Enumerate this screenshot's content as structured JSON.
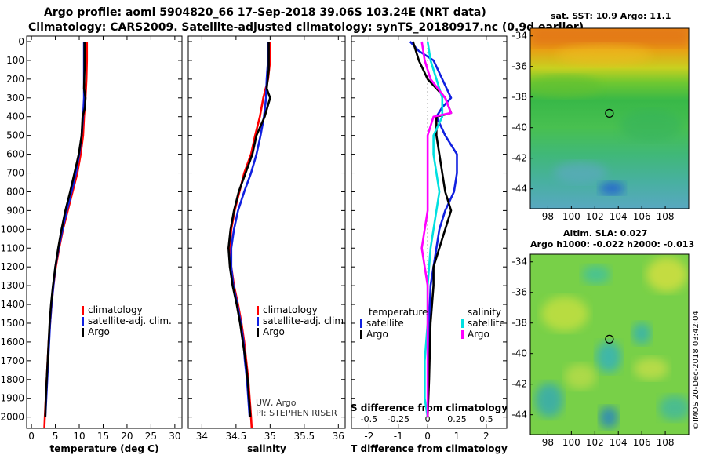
{
  "header": {
    "title_line1": "Argo profile: aoml 5904820_66 17-Sep-2018 39.06S 103.24E (NRT data)",
    "title_line2": "Climatology: CARS2009. Satellite-adjusted climatology: synTS_20180917.nc (0.9d earlier)"
  },
  "sst_title": "sat. SST: 10.9 Argo: 11.1",
  "sla_title1": "Altim. SLA: 0.027",
  "sla_title2": "Argo h1000: -0.022 h2000: -0.013",
  "credit_text": "UW, Argo",
  "pi_text": "PI: STEPHEN RISER",
  "footer_stamp": "©IMOS 20-Dec-2018 03:42:04",
  "colors": {
    "climatology": "#ff0000",
    "satellite": "#1020e0",
    "argo": "#000000",
    "satellite_s": "#00e0e0",
    "argo_s": "#ff00ff"
  },
  "chart_data": [
    {
      "type": "line",
      "name": "temperature-profile",
      "xlabel": "temperature (deg C)",
      "ylabel": "depth",
      "xlim": [
        -1,
        31.5
      ],
      "ylim": [
        2060,
        0
      ],
      "xticks": [
        0,
        5,
        10,
        15,
        20,
        25,
        30
      ],
      "yticks": [
        0,
        100,
        200,
        300,
        400,
        500,
        600,
        700,
        800,
        900,
        1000,
        1100,
        1200,
        1300,
        1400,
        1500,
        1600,
        1700,
        1800,
        1900,
        2000
      ],
      "legend": [
        "climatology",
        "satellite-adj. clim.",
        "Argo"
      ],
      "series": [
        {
          "name": "climatology",
          "color": "#ff0000",
          "points": [
            [
              11.6,
              0
            ],
            [
              11.6,
              100
            ],
            [
              11.5,
              200
            ],
            [
              11.3,
              300
            ],
            [
              11.0,
              400
            ],
            [
              10.8,
              500
            ],
            [
              10.3,
              600
            ],
            [
              9.6,
              700
            ],
            [
              8.6,
              800
            ],
            [
              7.6,
              900
            ],
            [
              6.6,
              1000
            ],
            [
              5.8,
              1100
            ],
            [
              5.1,
              1200
            ],
            [
              4.6,
              1300
            ],
            [
              4.2,
              1400
            ],
            [
              3.9,
              1500
            ],
            [
              3.6,
              1600
            ],
            [
              3.4,
              1700
            ],
            [
              3.2,
              1800
            ],
            [
              3.0,
              1900
            ],
            [
              2.8,
              2000
            ],
            [
              2.7,
              2060
            ]
          ]
        },
        {
          "name": "satellite-adj. clim.",
          "color": "#1020e0",
          "points": [
            [
              11.0,
              0
            ],
            [
              11.0,
              100
            ],
            [
              11.0,
              200
            ],
            [
              11.0,
              300
            ],
            [
              10.8,
              400
            ],
            [
              10.5,
              500
            ],
            [
              10.0,
              600
            ],
            [
              9.3,
              700
            ],
            [
              8.4,
              800
            ],
            [
              7.4,
              900
            ],
            [
              6.5,
              1000
            ],
            [
              5.7,
              1100
            ],
            [
              5.0,
              1200
            ],
            [
              4.6,
              1300
            ],
            [
              4.2,
              1400
            ],
            [
              3.9,
              1500
            ],
            [
              3.7,
              1600
            ],
            [
              3.5,
              1700
            ],
            [
              3.3,
              1800
            ],
            [
              3.1,
              1900
            ],
            [
              2.9,
              2000
            ]
          ]
        },
        {
          "name": "Argo",
          "color": "#000000",
          "points": [
            [
              11.1,
              0
            ],
            [
              11.1,
              150
            ],
            [
              11.0,
              250
            ],
            [
              11.3,
              300
            ],
            [
              11.2,
              350
            ],
            [
              10.7,
              400
            ],
            [
              10.5,
              500
            ],
            [
              9.9,
              600
            ],
            [
              9.0,
              700
            ],
            [
              8.1,
              800
            ],
            [
              7.1,
              900
            ],
            [
              6.3,
              1000
            ],
            [
              5.6,
              1100
            ],
            [
              5.0,
              1200
            ],
            [
              4.5,
              1300
            ],
            [
              4.1,
              1400
            ],
            [
              3.8,
              1500
            ],
            [
              3.6,
              1600
            ],
            [
              3.4,
              1700
            ],
            [
              3.2,
              1800
            ],
            [
              3.0,
              1900
            ],
            [
              2.9,
              2000
            ]
          ]
        }
      ]
    },
    {
      "type": "line",
      "name": "salinity-profile",
      "xlabel": "salinity",
      "ylabel": "depth",
      "xlim": [
        33.8,
        36.1
      ],
      "ylim": [
        2060,
        0
      ],
      "xticks": [
        34,
        34.5,
        35,
        35.5,
        36
      ],
      "xticklabels": [
        "34",
        "34.5",
        "35",
        "35.5",
        "36"
      ],
      "legend": [
        "climatology",
        "satellite-adj. clim.",
        "Argo"
      ],
      "series": [
        {
          "name": "climatology",
          "color": "#ff0000",
          "points": [
            [
              35.0,
              0
            ],
            [
              35.0,
              100
            ],
            [
              34.97,
              200
            ],
            [
              34.9,
              300
            ],
            [
              34.85,
              400
            ],
            [
              34.78,
              500
            ],
            [
              34.72,
              600
            ],
            [
              34.62,
              700
            ],
            [
              34.55,
              800
            ],
            [
              34.48,
              900
            ],
            [
              34.43,
              1000
            ],
            [
              34.41,
              1100
            ],
            [
              34.43,
              1200
            ],
            [
              34.47,
              1300
            ],
            [
              34.53,
              1400
            ],
            [
              34.58,
              1500
            ],
            [
              34.62,
              1600
            ],
            [
              34.65,
              1700
            ],
            [
              34.68,
              1800
            ],
            [
              34.7,
              1900
            ],
            [
              34.72,
              2000
            ],
            [
              34.73,
              2060
            ]
          ]
        },
        {
          "name": "satellite-adj. clim.",
          "color": "#1020e0",
          "points": [
            [
              34.97,
              0
            ],
            [
              34.97,
              100
            ],
            [
              34.95,
              200
            ],
            [
              34.94,
              300
            ],
            [
              34.91,
              400
            ],
            [
              34.86,
              500
            ],
            [
              34.8,
              600
            ],
            [
              34.72,
              700
            ],
            [
              34.62,
              800
            ],
            [
              34.53,
              900
            ],
            [
              34.47,
              1000
            ],
            [
              34.43,
              1100
            ],
            [
              34.43,
              1200
            ],
            [
              34.46,
              1300
            ],
            [
              34.52,
              1400
            ],
            [
              34.57,
              1500
            ],
            [
              34.61,
              1600
            ],
            [
              34.63,
              1700
            ],
            [
              34.66,
              1800
            ],
            [
              34.68,
              1900
            ],
            [
              34.7,
              2000
            ]
          ]
        },
        {
          "name": "Argo",
          "color": "#000000",
          "points": [
            [
              34.98,
              0
            ],
            [
              34.98,
              150
            ],
            [
              34.95,
              250
            ],
            [
              35.0,
              300
            ],
            [
              34.92,
              400
            ],
            [
              34.8,
              500
            ],
            [
              34.74,
              600
            ],
            [
              34.64,
              700
            ],
            [
              34.54,
              800
            ],
            [
              34.47,
              900
            ],
            [
              34.42,
              1000
            ],
            [
              34.39,
              1100
            ],
            [
              34.41,
              1200
            ],
            [
              34.45,
              1300
            ],
            [
              34.51,
              1400
            ],
            [
              34.56,
              1500
            ],
            [
              34.6,
              1600
            ],
            [
              34.64,
              1700
            ],
            [
              34.67,
              1800
            ],
            [
              34.69,
              1900
            ],
            [
              34.71,
              2000
            ]
          ]
        }
      ]
    },
    {
      "type": "line",
      "name": "difference-profile",
      "xlabel": "T difference from climatology",
      "x2label": "S difference from climatology",
      "ylabel": "depth",
      "xlim": [
        -2.6,
        2.7
      ],
      "ylim": [
        2060,
        0
      ],
      "xticks": [
        -2,
        -1,
        0,
        1,
        2
      ],
      "x2ticks": [
        -0.5,
        -0.25,
        0,
        0.25,
        0.5
      ],
      "x2ticklabels": [
        "-0.5",
        "-0.25",
        "0",
        "0.25",
        "0.5"
      ],
      "legend_title_left": "temperature",
      "legend_title_right": "salinity",
      "legend_left": [
        "satellite",
        "Argo"
      ],
      "legend_right": [
        "satellite",
        "Argo"
      ],
      "series": [
        {
          "name": "temperature satellite",
          "color": "#1020e0",
          "points": [
            [
              -0.6,
              0
            ],
            [
              -0.3,
              50
            ],
            [
              0.2,
              100
            ],
            [
              0.5,
              200
            ],
            [
              0.8,
              300
            ],
            [
              0.5,
              350
            ],
            [
              0.3,
              400
            ],
            [
              0.6,
              500
            ],
            [
              1.0,
              600
            ],
            [
              1.0,
              700
            ],
            [
              0.9,
              800
            ],
            [
              0.6,
              900
            ],
            [
              0.4,
              1000
            ],
            [
              0.3,
              1100
            ],
            [
              0.2,
              1200
            ],
            [
              0.1,
              1300
            ],
            [
              0.05,
              1500
            ],
            [
              0.0,
              2000
            ]
          ]
        },
        {
          "name": "temperature Argo",
          "color": "#000000",
          "points": [
            [
              -0.5,
              0
            ],
            [
              -0.3,
              100
            ],
            [
              0.0,
              200
            ],
            [
              0.6,
              300
            ],
            [
              0.8,
              380
            ],
            [
              0.3,
              400
            ],
            [
              0.3,
              500
            ],
            [
              0.4,
              600
            ],
            [
              0.5,
              700
            ],
            [
              0.6,
              800
            ],
            [
              0.8,
              900
            ],
            [
              0.6,
              1000
            ],
            [
              0.4,
              1100
            ],
            [
              0.2,
              1200
            ],
            [
              0.2,
              1300
            ],
            [
              0.1,
              1500
            ],
            [
              0.05,
              1800
            ],
            [
              0.0,
              2000
            ]
          ]
        },
        {
          "name": "salinity satellite",
          "color": "#00e0e0",
          "points": [
            [
              0.0,
              0
            ],
            [
              0.1,
              100
            ],
            [
              0.3,
              200
            ],
            [
              0.5,
              300
            ],
            [
              0.5,
              400
            ],
            [
              0.2,
              500
            ],
            [
              0.2,
              600
            ],
            [
              0.3,
              700
            ],
            [
              0.4,
              800
            ],
            [
              0.3,
              900
            ],
            [
              0.2,
              1000
            ],
            [
              0.1,
              1100
            ],
            [
              0.0,
              1300
            ],
            [
              0.0,
              1500
            ],
            [
              -0.1,
              1700
            ],
            [
              -0.1,
              1900
            ],
            [
              0.0,
              2000
            ]
          ]
        },
        {
          "name": "salinity Argo",
          "color": "#ff00ff",
          "points": [
            [
              -0.2,
              0
            ],
            [
              -0.1,
              100
            ],
            [
              0.1,
              200
            ],
            [
              0.6,
              300
            ],
            [
              0.8,
              380
            ],
            [
              0.2,
              400
            ],
            [
              0.0,
              500
            ],
            [
              0.0,
              700
            ],
            [
              0.0,
              900
            ],
            [
              -0.1,
              1000
            ],
            [
              -0.2,
              1100
            ],
            [
              -0.1,
              1200
            ],
            [
              0.0,
              1300
            ],
            [
              0.0,
              1500
            ],
            [
              0.0,
              1700
            ],
            [
              0.0,
              2000
            ]
          ]
        }
      ]
    },
    {
      "type": "heatmap",
      "name": "sst-map",
      "title": "sat. SST: 10.9 Argo: 11.1",
      "xlim": [
        96.5,
        110
      ],
      "ylim": [
        -45.3,
        -33.5
      ],
      "xticks": [
        98,
        100,
        102,
        104,
        106,
        108
      ],
      "yticks": [
        -34,
        -36,
        -38,
        -40,
        -42,
        -44
      ],
      "xticklabels": [
        "98",
        "100",
        "102",
        "104",
        "106",
        "108"
      ],
      "yticklabels": [
        "-34",
        "-36",
        "-38",
        "-40",
        "-42",
        "-44"
      ],
      "marker": {
        "lon": 103.24,
        "lat": -39.06
      }
    },
    {
      "type": "heatmap",
      "name": "sla-map",
      "title": "Altim. SLA: 0.027",
      "xlim": [
        96.5,
        110
      ],
      "ylim": [
        -45.3,
        -33.5
      ],
      "xticks": [
        98,
        100,
        102,
        104,
        106,
        108
      ],
      "yticks": [
        -34,
        -36,
        -38,
        -40,
        -42,
        -44
      ],
      "xticklabels": [
        "98",
        "100",
        "102",
        "104",
        "106",
        "108"
      ],
      "yticklabels": [
        "-34",
        "-36",
        "-38",
        "-40",
        "-42",
        "-44"
      ],
      "marker": {
        "lon": 103.24,
        "lat": -39.06
      }
    }
  ]
}
